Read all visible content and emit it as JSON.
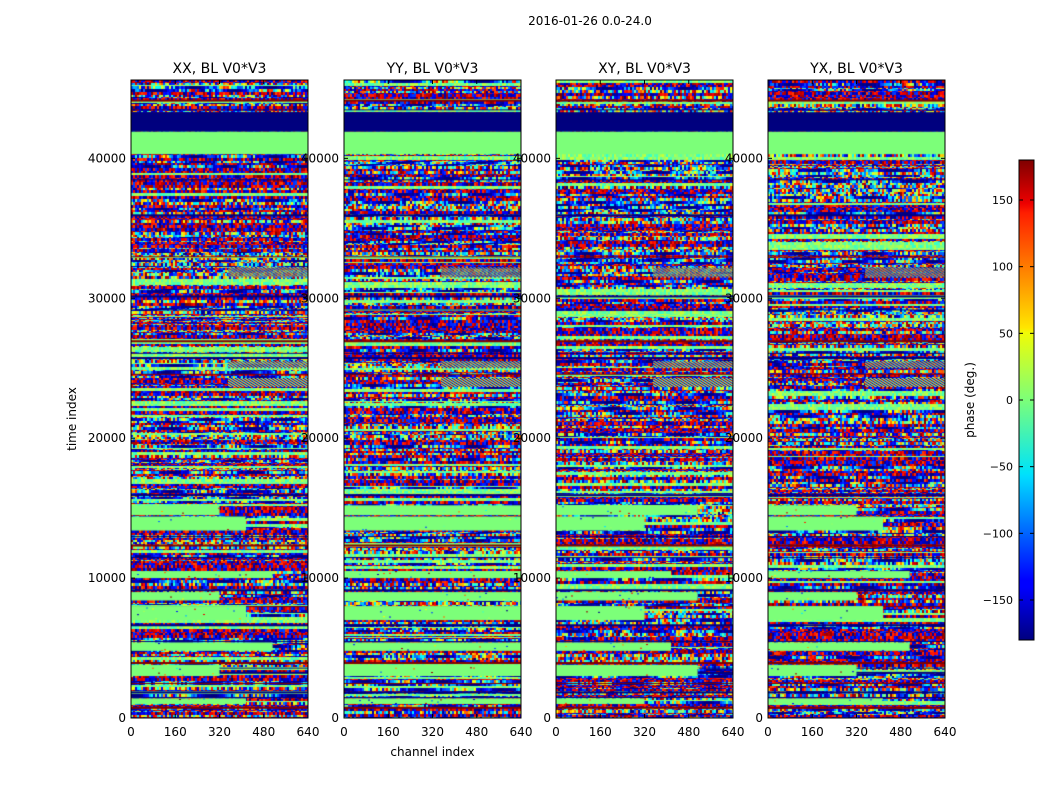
{
  "figure": {
    "suptitle": "2016-01-26 0.0-24.0"
  },
  "chart_data": [
    {
      "type": "heatmap",
      "title": "XX, BL V0*V3",
      "xlabel": "",
      "ylabel": "time index",
      "x_ticks": [
        "0",
        "160",
        "320",
        "480",
        "640"
      ],
      "y_ticks": [
        "0",
        "10000",
        "20000",
        "30000",
        "40000"
      ],
      "xlim": [
        0,
        640
      ],
      "ylim": [
        0,
        45600
      ],
      "value_range": [
        -180,
        180
      ],
      "colormap": "jet"
    },
    {
      "type": "heatmap",
      "title": "YY, BL V0*V3",
      "xlabel": "channel index",
      "ylabel": "",
      "x_ticks": [
        "0",
        "160",
        "320",
        "480",
        "640"
      ],
      "y_ticks": [
        "0",
        "10000",
        "20000",
        "30000",
        "40000"
      ],
      "xlim": [
        0,
        640
      ],
      "ylim": [
        0,
        45600
      ],
      "value_range": [
        -180,
        180
      ],
      "colormap": "jet"
    },
    {
      "type": "heatmap",
      "title": "XY, BL V0*V3",
      "xlabel": "",
      "ylabel": "",
      "x_ticks": [
        "0",
        "160",
        "320",
        "480",
        "640"
      ],
      "y_ticks": [
        "0",
        "10000",
        "20000",
        "30000",
        "40000"
      ],
      "xlim": [
        0,
        640
      ],
      "ylim": [
        0,
        45600
      ],
      "value_range": [
        -180,
        180
      ],
      "colormap": "jet"
    },
    {
      "type": "heatmap",
      "title": "YX, BL V0*V3",
      "xlabel": "",
      "ylabel": "",
      "x_ticks": [
        "0",
        "160",
        "320",
        "480",
        "640"
      ],
      "y_ticks": [
        "0",
        "10000",
        "20000",
        "30000",
        "40000"
      ],
      "xlim": [
        0,
        640
      ],
      "ylim": [
        0,
        45600
      ],
      "value_range": [
        -180,
        180
      ],
      "colormap": "jet"
    }
  ],
  "colorbar": {
    "label": "phase (deg.)",
    "ticks": [
      "150",
      "100",
      "50",
      "0",
      "−50",
      "−100",
      "−150"
    ],
    "tick_values": [
      150,
      100,
      50,
      0,
      -50,
      -100,
      -150
    ],
    "range": [
      -180,
      180
    ]
  }
}
